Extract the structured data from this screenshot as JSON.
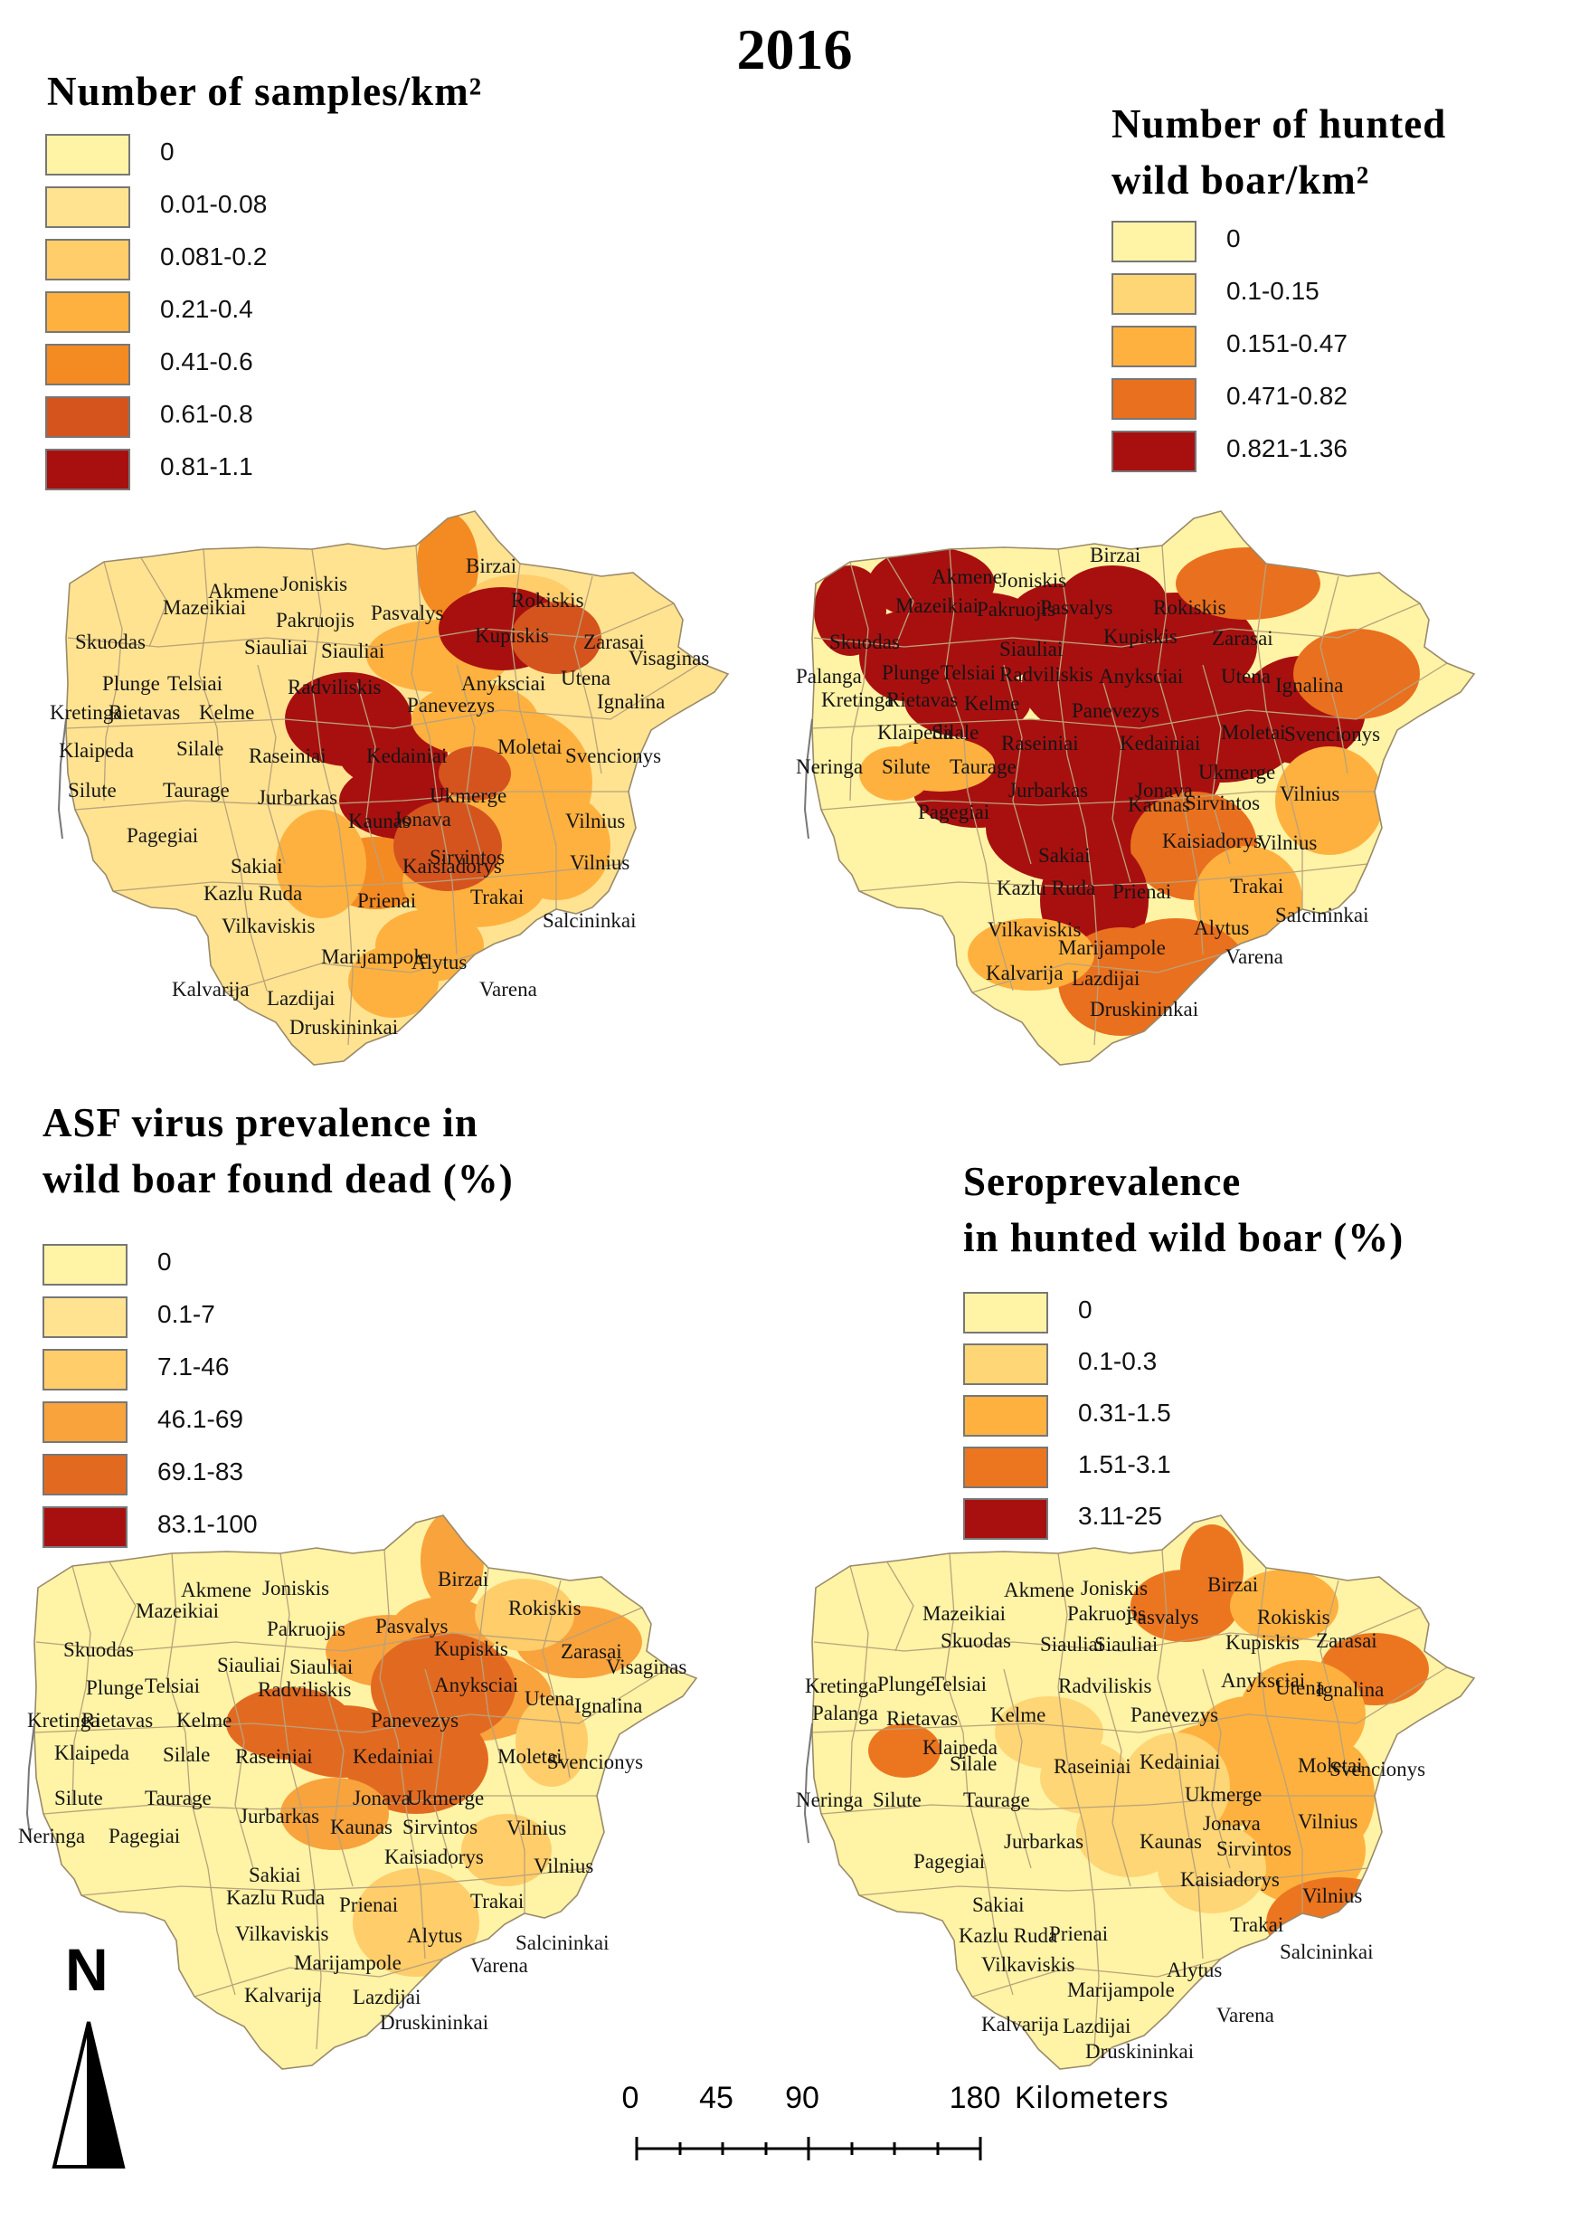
{
  "title": "2016",
  "maps": [
    {
      "id": "samples",
      "legend_title": "Number of samples/km²",
      "classes": [
        {
          "label": "0",
          "color": "#fff3a6"
        },
        {
          "label": "0.01-0.08",
          "color": "#ffe391"
        },
        {
          "label": "0.081-0.2",
          "color": "#ffcd6a"
        },
        {
          "label": "0.21-0.4",
          "color": "#ffb13f"
        },
        {
          "label": "0.41-0.6",
          "color": "#f48a22"
        },
        {
          "label": "0.61-0.8",
          "color": "#d5541e"
        },
        {
          "label": "0.81-1.1",
          "color": "#a81010"
        }
      ],
      "place_labels": [
        "Akmene",
        "Joniskis",
        "Birzai",
        "Rokiskis",
        "Mazeikiai",
        "Pakruojis",
        "Pasvalys",
        "Kupiskis",
        "Zarasai",
        "Visaginas",
        "Skuodas",
        "Siauliai",
        "Siauliai",
        "Plunge",
        "Telsiai",
        "Radviliskis",
        "Anyksciai",
        "Utena",
        "Ignalina",
        "Kretinga",
        "Rietavas",
        "Kelme",
        "Panevezys",
        "Klaipeda",
        "Silale",
        "Raseiniai",
        "Kedainiai",
        "Moletai",
        "Svencionys",
        "Ukmerge",
        "Silute",
        "Taurage",
        "Jurbarkas",
        "Jonava",
        "Kaunas",
        "Vilnius",
        "Pagegiai",
        "Sirvintos",
        "Sakiai",
        "Kaisiadorys",
        "Vilnius",
        "Kazlu Ruda",
        "Prienai",
        "Trakai",
        "Vilkaviskis",
        "Salcininkai",
        "Alytus",
        "Marijampole",
        "Varena",
        "Kalvarija",
        "Lazdijai",
        "Druskininkai"
      ]
    },
    {
      "id": "hunted",
      "legend_title": "Number of hunted\nwild boar/km²",
      "classes": [
        {
          "label": "0",
          "color": "#fff3a6"
        },
        {
          "label": "0.1-0.15",
          "color": "#ffd675"
        },
        {
          "label": "0.151-0.47",
          "color": "#ffb13f"
        },
        {
          "label": "0.471-0.82",
          "color": "#e9701e"
        },
        {
          "label": "0.821-1.36",
          "color": "#a81010"
        }
      ],
      "place_labels": [
        "Akmene",
        "Joniskis",
        "Birzai",
        "Mazeikiai",
        "Pakruojis",
        "Pasvalys",
        "Rokiskis",
        "Kupiskis",
        "Zarasai",
        "Skuodas",
        "Siauliai",
        "Palanga",
        "Plunge",
        "Telsiai",
        "Radviliskis",
        "Anyksciai",
        "Utena",
        "Ignalina",
        "Kretinga",
        "Rietavas",
        "Kelme",
        "Panevezys",
        "Klaipeda",
        "Silale",
        "Raseiniai",
        "Kedainiai",
        "Moletai",
        "Svencionys",
        "Neringa",
        "Silute",
        "Taurage",
        "Jonava",
        "Ukmerge",
        "Jurbarkas",
        "Kaunas",
        "Sirvintos",
        "Vilnius",
        "Pagegiai",
        "Kaisiadorys",
        "Vilnius",
        "Sakiai",
        "Kazlu Ruda",
        "Prienai",
        "Trakai",
        "Salcininkai",
        "Vilkaviskis",
        "Alytus",
        "Marijampole",
        "Varena",
        "Kalvarija",
        "Lazdijai",
        "Druskininkai"
      ]
    },
    {
      "id": "asf",
      "legend_title": "ASF virus prevalence in\nwild boar found dead (%)",
      "classes": [
        {
          "label": "0",
          "color": "#fff3a6"
        },
        {
          "label": "0.1-7",
          "color": "#ffe391"
        },
        {
          "label": "7.1-46",
          "color": "#ffcd6a"
        },
        {
          "label": "46.1-69",
          "color": "#f9a33d"
        },
        {
          "label": "69.1-83",
          "color": "#e26a20"
        },
        {
          "label": "83.1-100",
          "color": "#a81010"
        }
      ],
      "place_labels": [
        "Akmene",
        "Joniskis",
        "Birzai",
        "Rokiskis",
        "Mazeikiai",
        "Pakruojis",
        "Pasvalys",
        "Kupiskis",
        "Zarasai",
        "Visaginas",
        "Skuodas",
        "Siauliai",
        "Siauliai",
        "Plunge",
        "Telsiai",
        "Radviliskis",
        "Anyksciai",
        "Utena",
        "Ignalina",
        "Kretinga",
        "Rietavas",
        "Kelme",
        "Panevezys",
        "Klaipeda",
        "Silale",
        "Raseiniai",
        "Kedainiai",
        "Moletai",
        "Svencionys",
        "Silute",
        "Taurage",
        "Jurbarkas",
        "Jonava",
        "Ukmerge",
        "Kaunas",
        "Sirvintos",
        "Vilnius",
        "Neringa",
        "Pagegiai",
        "Kaisiadorys",
        "Vilnius",
        "Sakiai",
        "Kazlu Ruda",
        "Prienai",
        "Trakai",
        "Vilkaviskis",
        "Alytus",
        "Salcininkai",
        "Marijampole",
        "Varena",
        "Kalvarija",
        "Lazdijai",
        "Druskininkai"
      ]
    },
    {
      "id": "sero",
      "legend_title": "Seroprevalence\nin hunted wild boar (%)",
      "classes": [
        {
          "label": "0",
          "color": "#fff3a6"
        },
        {
          "label": "0.1-0.3",
          "color": "#ffd675"
        },
        {
          "label": "0.31-1.5",
          "color": "#ffb13f"
        },
        {
          "label": "1.51-3.1",
          "color": "#ec7620"
        },
        {
          "label": "3.11-25",
          "color": "#a81010"
        }
      ],
      "place_labels": [
        "Akmene",
        "Joniskis",
        "Birzai",
        "Mazeikiai",
        "Pakruojis",
        "Pasvalys",
        "Rokiskis",
        "Kupiskis",
        "Zarasai",
        "Skuodas",
        "Siauliai",
        "Siauliai",
        "Kretinga",
        "Plunge",
        "Telsiai",
        "Radviliskis",
        "Anyksciai",
        "Utena",
        "Ignalina",
        "Palanga",
        "Rietavas",
        "Kelme",
        "Panevezys",
        "Klaipeda",
        "Silale",
        "Raseiniai",
        "Kedainiai",
        "Moletai",
        "Svencionys",
        "Neringa",
        "Silute",
        "Taurage",
        "Ukmerge",
        "Jonava",
        "Vilnius",
        "Jurbarkas",
        "Kaunas",
        "Sirvintos",
        "Pagegiai",
        "Kaisiadorys",
        "Vilnius",
        "Sakiai",
        "Kazlu Ruda",
        "Prienai",
        "Trakai",
        "Salcininkai",
        "Vilkaviskis",
        "Alytus",
        "Marijampole",
        "Varena",
        "Kalvarija",
        "Lazdijai",
        "Druskininkai"
      ]
    }
  ],
  "north_arrow": {
    "label": "N"
  },
  "scale_bar": {
    "ticks": [
      "0",
      "45",
      "90",
      "180"
    ],
    "unit": "Kilometers"
  }
}
